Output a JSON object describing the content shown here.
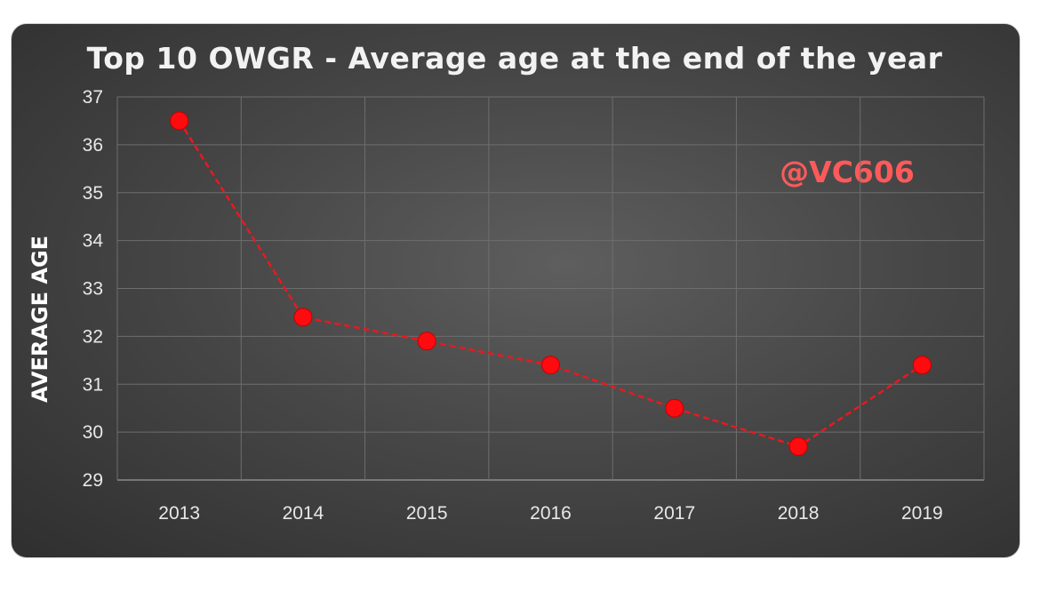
{
  "chart_data": {
    "type": "line",
    "title": "Top 10 OWGR - Average age at the end of the year",
    "xlabel": "",
    "ylabel": "AVERAGE AGE",
    "categories": [
      "2013",
      "2014",
      "2015",
      "2016",
      "2017",
      "2018",
      "2019"
    ],
    "series": [
      {
        "values": [
          36.5,
          32.4,
          31.9,
          31.4,
          30.5,
          29.7,
          31.4
        ]
      }
    ],
    "ylim": [
      29,
      37
    ],
    "yticks": [
      29,
      30,
      31,
      32,
      33,
      34,
      35,
      36,
      37
    ],
    "grid": true,
    "legend": "none",
    "annotation": "@VC606",
    "colors": {
      "series": "#e8191f",
      "marker": "#ff0a0f",
      "annotation": "#ff5a5a",
      "background": "#474747"
    }
  }
}
